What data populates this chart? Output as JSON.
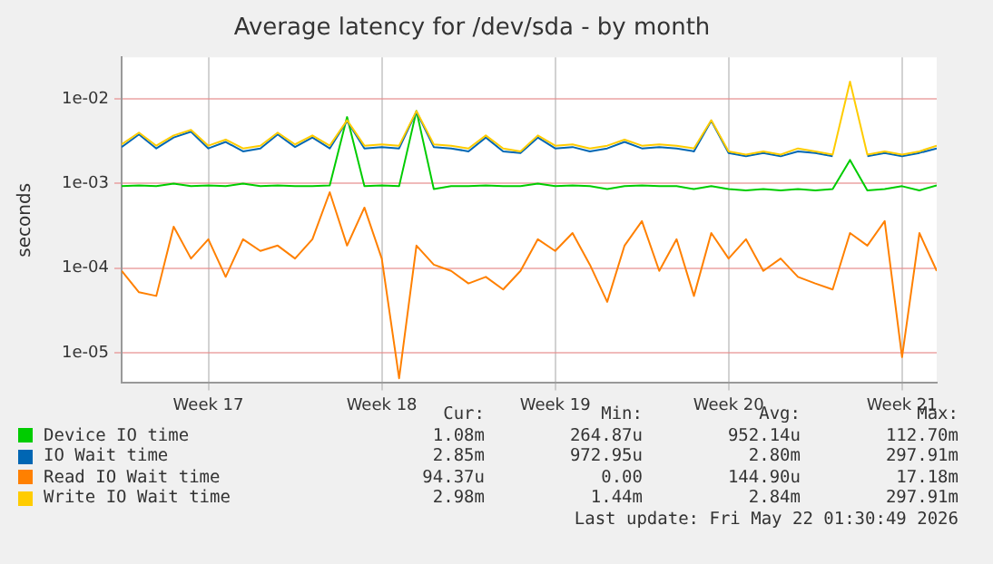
{
  "chart_data": {
    "type": "line",
    "title": "Average latency for /dev/sda - by month",
    "ylabel": "seconds",
    "log": "y",
    "grid": true,
    "legend": "bottom",
    "marker": "none",
    "line_style": "solid",
    "categories": [
      null,
      null,
      null,
      null,
      null,
      "Week 17",
      null,
      null,
      null,
      null,
      null,
      null,
      null,
      null,
      null,
      "Week 18",
      null,
      null,
      null,
      null,
      null,
      null,
      null,
      null,
      null,
      "Week 19",
      null,
      null,
      null,
      null,
      null,
      null,
      null,
      null,
      null,
      "Week 20",
      null,
      null,
      null,
      null,
      null,
      null,
      null,
      null,
      null,
      "Week 21",
      null,
      null
    ],
    "ylim": [
      4.4e-06,
      0.031
    ],
    "yticks": [
      {
        "value": 1e-05,
        "label": "1e-05"
      },
      {
        "value": 0.0001,
        "label": "1e-04"
      },
      {
        "value": 0.001,
        "label": "1e-03"
      },
      {
        "value": 0.01,
        "label": "1e-02"
      }
    ],
    "series": [
      {
        "name": "Device IO time",
        "color": "#00cc00",
        "values": [
          0.00093,
          0.00095,
          0.00093,
          0.001,
          0.00093,
          0.00095,
          0.00093,
          0.001,
          0.00093,
          0.00095,
          0.00093,
          0.00093,
          0.00095,
          0.0061,
          0.00093,
          0.00095,
          0.00093,
          0.0072,
          0.00086,
          0.00093,
          0.00093,
          0.00095,
          0.00093,
          0.00093,
          0.001,
          0.00093,
          0.00095,
          0.00093,
          0.00086,
          0.00093,
          0.00095,
          0.00093,
          0.00093,
          0.00086,
          0.00093,
          0.00086,
          0.00083,
          0.00086,
          0.00083,
          0.00086,
          0.00083,
          0.00086,
          0.0019,
          0.00083,
          0.00086,
          0.00093,
          0.00083,
          0.00095
        ]
      },
      {
        "name": "IO Wait time",
        "color": "#0066b3",
        "values": [
          0.0027,
          0.0038,
          0.0026,
          0.0035,
          0.0041,
          0.0026,
          0.0031,
          0.0024,
          0.0026,
          0.0038,
          0.0027,
          0.0035,
          0.0026,
          0.0055,
          0.0026,
          0.0027,
          0.0026,
          0.0071,
          0.0027,
          0.0026,
          0.0024,
          0.0035,
          0.0024,
          0.0023,
          0.0035,
          0.0026,
          0.0027,
          0.0024,
          0.0026,
          0.0031,
          0.0026,
          0.0027,
          0.0026,
          0.0024,
          0.0055,
          0.0023,
          0.0021,
          0.0023,
          0.0021,
          0.0024,
          0.0023,
          0.0021,
          null,
          0.0021,
          0.0023,
          0.0021,
          0.0023,
          0.0026
        ]
      },
      {
        "name": "Read IO Wait time",
        "color": "#ff8000",
        "values": [
          9.3e-05,
          5.2e-05,
          4.7e-05,
          0.00031,
          0.00013,
          0.00022,
          7.9e-05,
          0.00022,
          0.00016,
          0.000185,
          0.00013,
          0.00022,
          0.00079,
          0.000185,
          0.00052,
          0.00013,
          5e-06,
          0.000185,
          0.00011,
          9.3e-05,
          6.6e-05,
          7.9e-05,
          5.6e-05,
          9.3e-05,
          0.00022,
          0.00016,
          0.00026,
          0.00011,
          4e-05,
          0.000185,
          0.00036,
          9.3e-05,
          0.00022,
          4.7e-05,
          0.00026,
          0.00013,
          0.00022,
          9.3e-05,
          0.00013,
          7.9e-05,
          6.6e-05,
          5.6e-05,
          0.00026,
          0.000185,
          0.00036,
          8.9e-06,
          0.00026,
          9.3e-05
        ]
      },
      {
        "name": "Write IO Wait time",
        "color": "#ffcc00",
        "values": [
          0.0029,
          0.004,
          0.0028,
          0.0037,
          0.0043,
          0.0028,
          0.0033,
          0.0026,
          0.0028,
          0.004,
          0.0029,
          0.0037,
          0.0028,
          0.0056,
          0.0028,
          0.0029,
          0.0028,
          0.0072,
          0.0029,
          0.0028,
          0.0026,
          0.0037,
          0.0026,
          0.0024,
          0.0037,
          0.0028,
          0.0029,
          0.0026,
          0.0028,
          0.0033,
          0.0028,
          0.0029,
          0.0028,
          0.0026,
          0.0056,
          0.0024,
          0.0022,
          0.0024,
          0.0022,
          0.0026,
          0.0024,
          0.0022,
          0.016,
          0.0022,
          0.0024,
          0.0022,
          0.0024,
          0.0028
        ]
      }
    ],
    "annotations": [
      "Cur:",
      "Min:",
      "Avg:",
      "Max:",
      "1.08m",
      "264.87u",
      "952.14u",
      "112.70m",
      "2.85m",
      "972.95u",
      "2.80m",
      "297.91m",
      "94.37u",
      "0.00",
      "144.90u",
      "17.18m",
      "2.98m",
      "1.44m",
      "2.84m",
      "297.91m",
      "Last update: Fri May 22 01:30:49 2026"
    ]
  }
}
